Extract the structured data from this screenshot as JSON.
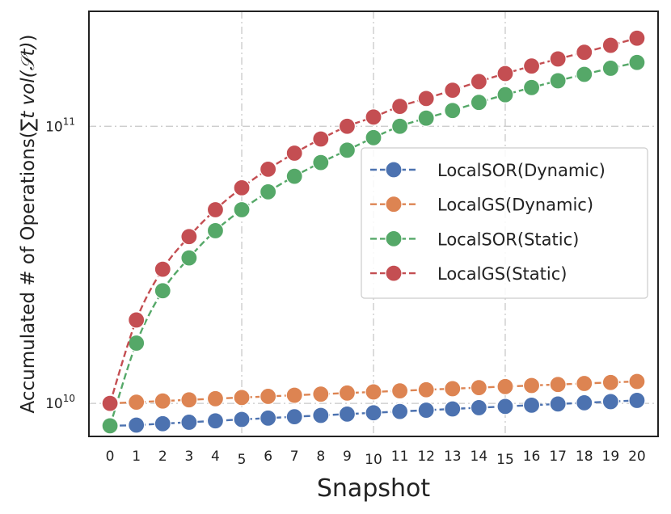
{
  "chart_data": {
    "type": "line",
    "xlabel": "Snapshot",
    "ylabel": "Accumulated # of Operations(",
    "ylabel_math": "∑t vol(𝒮t)",
    "ylabel_close": ")",
    "yscale": "log",
    "ylim": [
      7600000000.0,
      260000000000.0
    ],
    "xlim": [
      -0.8,
      20.8
    ],
    "x": [
      0,
      1,
      2,
      3,
      4,
      5,
      6,
      7,
      8,
      9,
      10,
      11,
      12,
      13,
      14,
      15,
      16,
      17,
      18,
      19,
      20
    ],
    "x_ticks": [
      0,
      1,
      2,
      3,
      4,
      5,
      6,
      7,
      8,
      9,
      10,
      11,
      12,
      13,
      14,
      15,
      16,
      17,
      18,
      19,
      20
    ],
    "x_tick_labels": [
      "0",
      "1",
      "2",
      "3",
      "4",
      "5",
      "6",
      "7",
      "8",
      "9",
      "10",
      "11",
      "12",
      "13",
      "14",
      "15",
      "16",
      "17",
      "18",
      "19",
      "20"
    ],
    "x_grid": [
      5,
      10,
      15
    ],
    "y_ticks": [
      10000000000.0,
      100000000000.0
    ],
    "y_tick_labels": [
      {
        "base": "10",
        "exp": "10"
      },
      {
        "base": "10",
        "exp": "11"
      }
    ],
    "legend_position": "center-right",
    "series": [
      {
        "name": "LocalSOR(Dynamic)",
        "color": "#4c72b0",
        "values": [
          8300000000.0,
          8350000000.0,
          8450000000.0,
          8550000000.0,
          8650000000.0,
          8750000000.0,
          8850000000.0,
          8950000000.0,
          9050000000.0,
          9150000000.0,
          9250000000.0,
          9350000000.0,
          9450000000.0,
          9550000000.0,
          9650000000.0,
          9750000000.0,
          9850000000.0,
          9950000000.0,
          10050000000.0,
          10150000000.0,
          10250000000.0
        ]
      },
      {
        "name": "LocalGS(Dynamic)",
        "color": "#dd8452",
        "values": [
          10000000000.0,
          10100000000.0,
          10200000000.0,
          10300000000.0,
          10400000000.0,
          10500000000.0,
          10600000000.0,
          10700000000.0,
          10800000000.0,
          10900000000.0,
          11000000000.0,
          11100000000.0,
          11200000000.0,
          11300000000.0,
          11400000000.0,
          11500000000.0,
          11600000000.0,
          11700000000.0,
          11800000000.0,
          11900000000.0,
          12000000000.0
        ]
      },
      {
        "name": "LocalSOR(Static)",
        "color": "#55a868",
        "values": [
          8300000000.0,
          16500000000.0,
          25500000000.0,
          33500000000.0,
          42000000000.0,
          50000000000.0,
          58000000000.0,
          66000000000.0,
          74000000000.0,
          82000000000.0,
          91000000000.0,
          100000000000.0,
          107000000000.0,
          114000000000.0,
          122000000000.0,
          130000000000.0,
          138000000000.0,
          146000000000.0,
          154000000000.0,
          162000000000.0,
          170000000000.0
        ]
      },
      {
        "name": "LocalGS(Static)",
        "color": "#c44e52",
        "values": [
          10000000000.0,
          20000000000.0,
          30500000000.0,
          40000000000.0,
          50000000000.0,
          60000000000.0,
          70000000000.0,
          80000000000.0,
          90000000000.0,
          100000000000.0,
          108000000000.0,
          118000000000.0,
          126000000000.0,
          135000000000.0,
          145000000000.0,
          155000000000.0,
          165000000000.0,
          175000000000.0,
          185000000000.0,
          196000000000.0,
          208000000000.0
        ]
      }
    ]
  }
}
